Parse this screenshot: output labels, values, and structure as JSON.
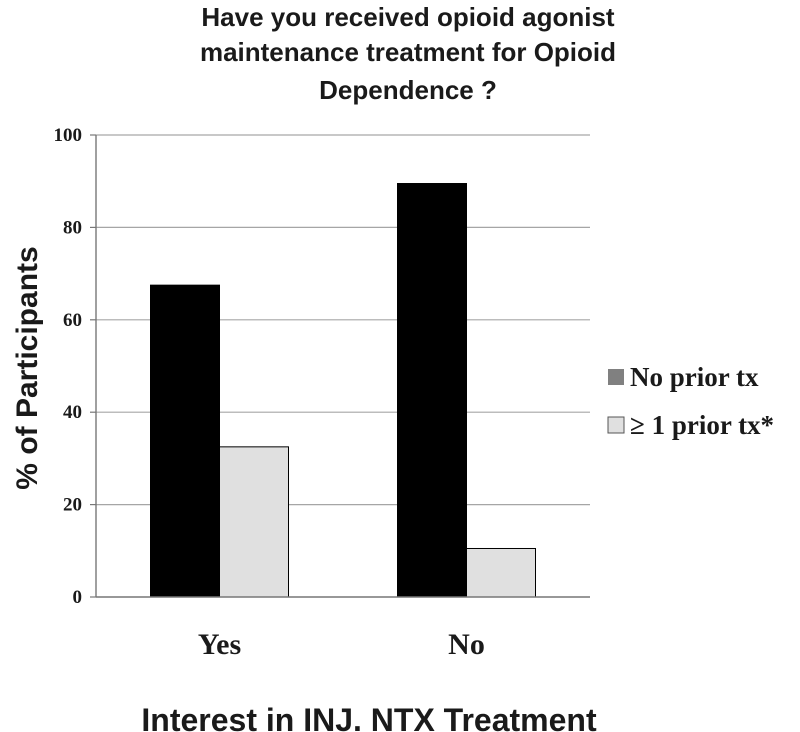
{
  "chart_data": {
    "type": "bar",
    "title_lines": [
      "Have you received opioid agonist",
      "maintenance  treatment for Opioid",
      "Dependence ?"
    ],
    "xlabel": "Interest in INJ. NTX Treatment",
    "ylabel": "% of Participants",
    "categories": [
      "Yes",
      "No"
    ],
    "series": [
      {
        "name": "No prior tx",
        "values": [
          67.5,
          89.5
        ],
        "color": "#000000",
        "legend_color": "#808080"
      },
      {
        "name": "≥ 1 prior tx*",
        "values": [
          32.5,
          10.5
        ],
        "color": "#e0e0e0",
        "legend_color": "#e0e0e0"
      }
    ],
    "ylim": [
      0,
      100
    ],
    "yticks": [
      0,
      20,
      40,
      60,
      80,
      100
    ],
    "grid": true,
    "legend_position": "right"
  }
}
